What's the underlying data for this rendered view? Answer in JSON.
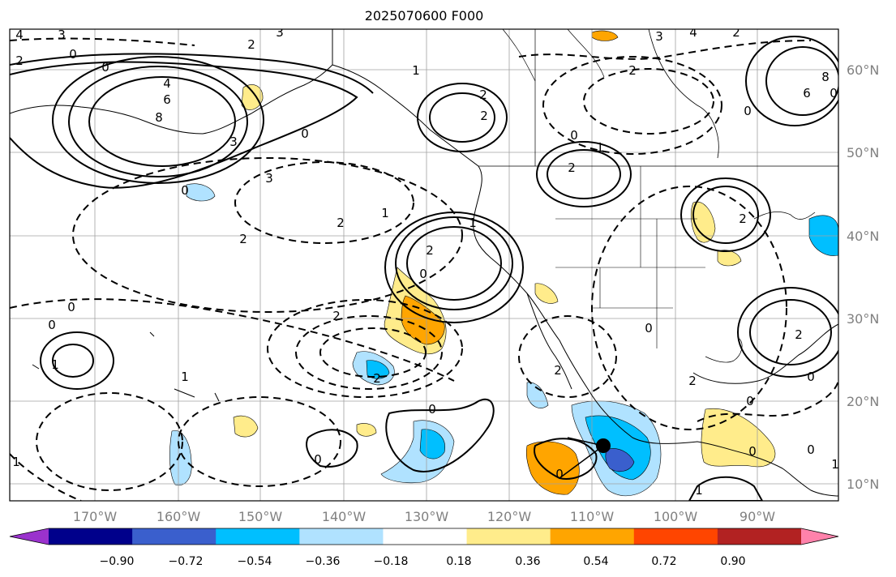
{
  "title": "2025070600 F000",
  "lon_labels": [
    "170°W",
    "160°W",
    "150°W",
    "140°W",
    "130°W",
    "120°W",
    "110°W",
    "100°W",
    "90°W"
  ],
  "lat_labels": [
    "60°N",
    "50°N",
    "40°N",
    "30°N",
    "20°N",
    "10°N"
  ],
  "colorbar": {
    "colors": [
      "#9a32cd",
      "#00008b",
      "#3a5fcd",
      "#00bfff",
      "#b0e2ff",
      "#ffffff",
      "#ffec8b",
      "#ffa500",
      "#ff4500",
      "#b22222",
      "#ff82ab"
    ],
    "ticks": [
      "−0.90",
      "−0.72",
      "−0.54",
      "−0.36",
      "−0.18",
      "0.18",
      "0.36",
      "0.54",
      "0.72",
      "0.90"
    ]
  },
  "contour_labels": [
    "4",
    "3",
    "2",
    "0",
    "4",
    "6",
    "8",
    "3",
    "2",
    "0",
    "3",
    "2",
    "1",
    "2",
    "0",
    "1",
    "2",
    "2",
    "3",
    "4",
    "3",
    "6",
    "8",
    "0",
    "2",
    "0",
    "2",
    "2",
    "2",
    "0",
    "1",
    "1",
    "2",
    "1",
    "0",
    "0",
    "2",
    "2",
    "0",
    "0",
    "0",
    "2",
    "0",
    "1",
    "0",
    "2",
    "0",
    "0",
    "0",
    "1",
    "0",
    "2",
    "0",
    "1",
    "1"
  ]
}
